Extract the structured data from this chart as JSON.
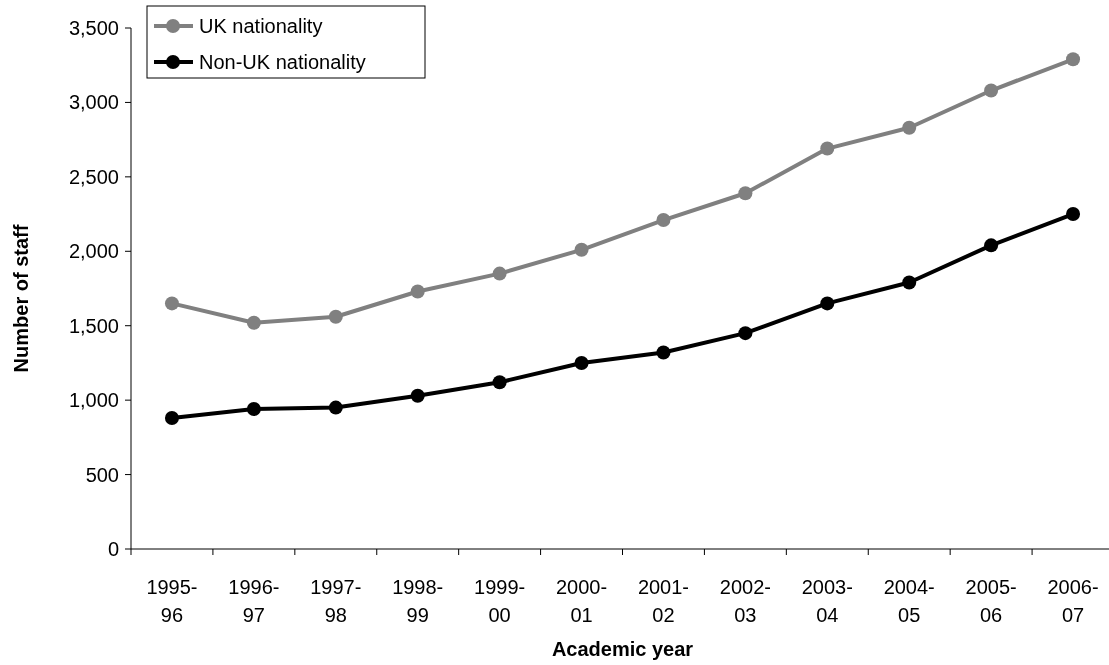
{
  "chart_data": {
    "type": "line",
    "xlabel": "Academic year",
    "ylabel": "Number of staff",
    "categories": [
      "1995-96",
      "1996-97",
      "1997-98",
      "1998-99",
      "1999-00",
      "2000-01",
      "2001-02",
      "2002-03",
      "2003-04",
      "2004-05",
      "2005-06",
      "2006-07"
    ],
    "series": [
      {
        "name": "UK nationality",
        "color": "#808080",
        "values": [
          1650,
          1520,
          1560,
          1730,
          1850,
          2010,
          2210,
          2390,
          2690,
          2830,
          3080,
          3290
        ]
      },
      {
        "name": "Non-UK nationality",
        "color": "#000000",
        "values": [
          880,
          940,
          950,
          1030,
          1120,
          1250,
          1320,
          1450,
          1650,
          1790,
          2040,
          2250
        ]
      }
    ],
    "ylim": [
      0,
      3500
    ],
    "yticks": [
      {
        "value": 0,
        "label": "0"
      },
      {
        "value": 500,
        "label": "500"
      },
      {
        "value": 1000,
        "label": "1,000"
      },
      {
        "value": 1500,
        "label": "1,500"
      },
      {
        "value": 2000,
        "label": "2,000"
      },
      {
        "value": 2500,
        "label": "2,500"
      },
      {
        "value": 3000,
        "label": "3,000"
      },
      {
        "value": 3500,
        "label": "3,500"
      }
    ],
    "grid": false,
    "legend": "top left",
    "marker": "circle",
    "line_style": "solid"
  }
}
